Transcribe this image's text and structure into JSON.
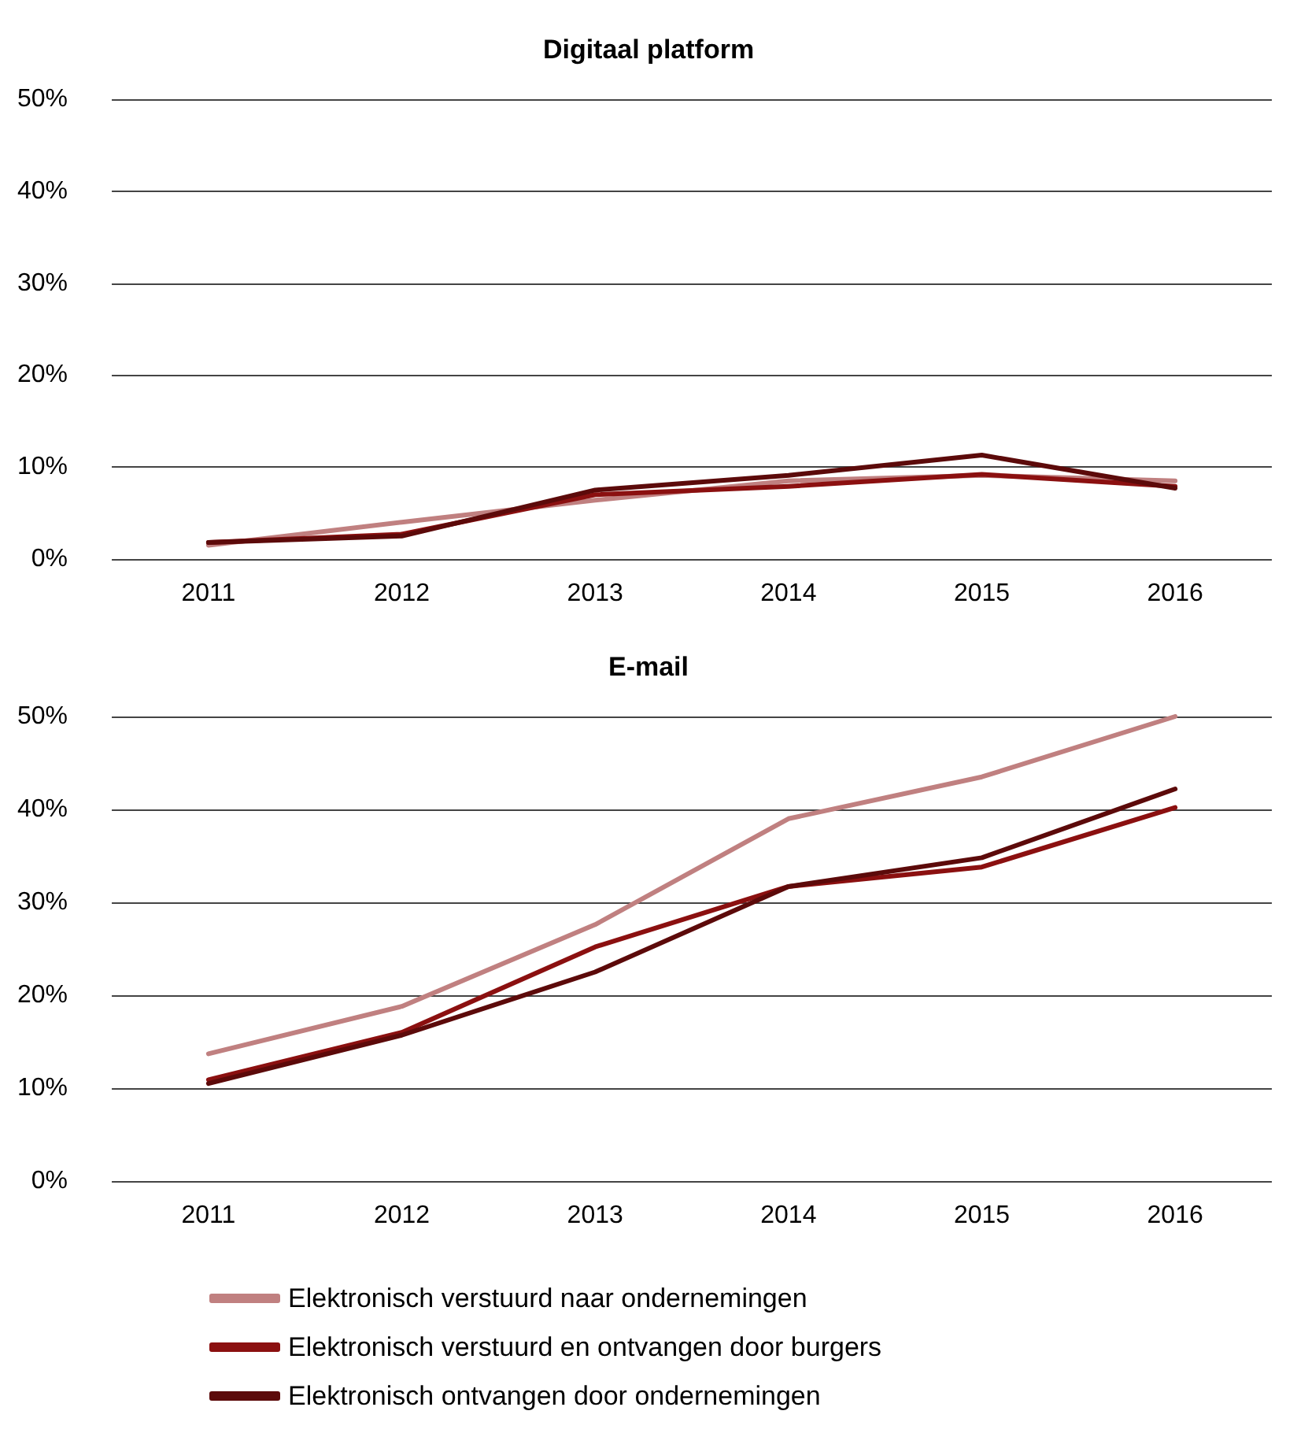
{
  "chart_data": [
    {
      "type": "line",
      "title": "Digitaal platform",
      "categories": [
        "2011",
        "2012",
        "2013",
        "2014",
        "2015",
        "2016"
      ],
      "ylim": [
        0,
        50
      ],
      "yticks": [
        {
          "value": 0,
          "label": "0%"
        },
        {
          "value": 10,
          "label": "10%"
        },
        {
          "value": 20,
          "label": "20%"
        },
        {
          "value": 30,
          "label": "30%"
        },
        {
          "value": 40,
          "label": "40%"
        },
        {
          "value": 50,
          "label": "50%"
        }
      ],
      "grid": "y",
      "legend": false,
      "series": [
        {
          "color": "#c08080",
          "values": [
            1.5,
            4.0,
            6.4,
            8.5,
            9.1,
            8.5
          ]
        },
        {
          "color": "#8b1010",
          "values": [
            1.8,
            2.7,
            7.0,
            7.9,
            9.2,
            7.9
          ]
        },
        {
          "color": "#5c0a0a",
          "values": [
            1.8,
            2.5,
            7.5,
            9.1,
            11.3,
            7.7
          ]
        }
      ]
    },
    {
      "type": "line",
      "title": "E-mail",
      "categories": [
        "2011",
        "2012",
        "2013",
        "2014",
        "2015",
        "2016"
      ],
      "ylim": [
        0,
        50
      ],
      "yticks": [
        {
          "value": 0,
          "label": "0%"
        },
        {
          "value": 10,
          "label": "10%"
        },
        {
          "value": 20,
          "label": "20%"
        },
        {
          "value": 30,
          "label": "30%"
        },
        {
          "value": 40,
          "label": "40%"
        },
        {
          "value": 50,
          "label": "50%"
        }
      ],
      "grid": "y",
      "legend": "bottom",
      "series": [
        {
          "name": "Elektronisch verstuurd naar ondernemingen",
          "color": "#c08080",
          "values": [
            13.7,
            18.8,
            27.6,
            39.0,
            43.5,
            50.0
          ]
        },
        {
          "name": "Elektronisch verstuurd en ontvangen door burgers",
          "color": "#8b1010",
          "values": [
            10.9,
            16.0,
            25.2,
            31.7,
            33.8,
            40.2
          ]
        },
        {
          "name": "Elektronisch ontvangen door ondernemingen",
          "color": "#5c0a0a",
          "values": [
            10.5,
            15.7,
            22.5,
            31.7,
            34.8,
            42.2
          ]
        }
      ]
    }
  ]
}
